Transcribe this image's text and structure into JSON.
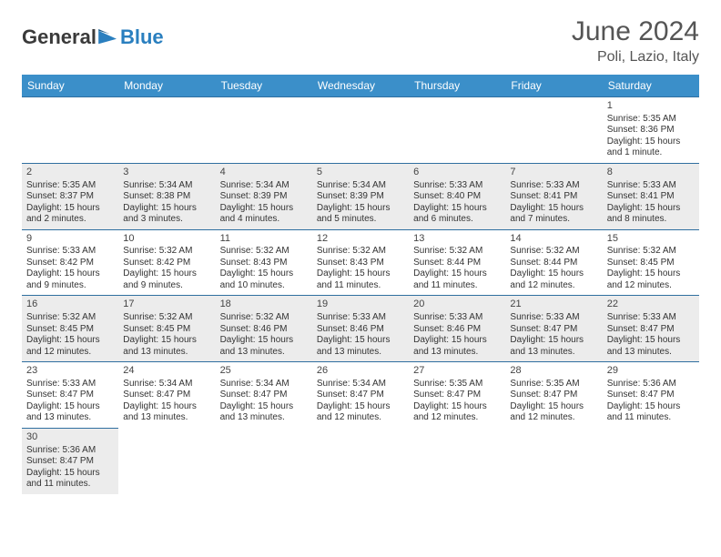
{
  "logo": {
    "general": "General",
    "blue": "Blue"
  },
  "title": "June 2024",
  "location": "Poli, Lazio, Italy",
  "colors": {
    "header_bg": "#3b8fc9",
    "header_text": "#ffffff",
    "cell_border": "#2f6fa0",
    "shade_bg": "#ececec",
    "text": "#333333",
    "title_color": "#555555"
  },
  "weekdays": [
    "Sunday",
    "Monday",
    "Tuesday",
    "Wednesday",
    "Thursday",
    "Friday",
    "Saturday"
  ],
  "leading_blanks": 6,
  "days": [
    {
      "n": 1,
      "sunrise": "5:35 AM",
      "sunset": "8:36 PM",
      "daylight": "15 hours and 1 minute."
    },
    {
      "n": 2,
      "sunrise": "5:35 AM",
      "sunset": "8:37 PM",
      "daylight": "15 hours and 2 minutes."
    },
    {
      "n": 3,
      "sunrise": "5:34 AM",
      "sunset": "8:38 PM",
      "daylight": "15 hours and 3 minutes."
    },
    {
      "n": 4,
      "sunrise": "5:34 AM",
      "sunset": "8:39 PM",
      "daylight": "15 hours and 4 minutes."
    },
    {
      "n": 5,
      "sunrise": "5:34 AM",
      "sunset": "8:39 PM",
      "daylight": "15 hours and 5 minutes."
    },
    {
      "n": 6,
      "sunrise": "5:33 AM",
      "sunset": "8:40 PM",
      "daylight": "15 hours and 6 minutes."
    },
    {
      "n": 7,
      "sunrise": "5:33 AM",
      "sunset": "8:41 PM",
      "daylight": "15 hours and 7 minutes."
    },
    {
      "n": 8,
      "sunrise": "5:33 AM",
      "sunset": "8:41 PM",
      "daylight": "15 hours and 8 minutes."
    },
    {
      "n": 9,
      "sunrise": "5:33 AM",
      "sunset": "8:42 PM",
      "daylight": "15 hours and 9 minutes."
    },
    {
      "n": 10,
      "sunrise": "5:32 AM",
      "sunset": "8:42 PM",
      "daylight": "15 hours and 9 minutes."
    },
    {
      "n": 11,
      "sunrise": "5:32 AM",
      "sunset": "8:43 PM",
      "daylight": "15 hours and 10 minutes."
    },
    {
      "n": 12,
      "sunrise": "5:32 AM",
      "sunset": "8:43 PM",
      "daylight": "15 hours and 11 minutes."
    },
    {
      "n": 13,
      "sunrise": "5:32 AM",
      "sunset": "8:44 PM",
      "daylight": "15 hours and 11 minutes."
    },
    {
      "n": 14,
      "sunrise": "5:32 AM",
      "sunset": "8:44 PM",
      "daylight": "15 hours and 12 minutes."
    },
    {
      "n": 15,
      "sunrise": "5:32 AM",
      "sunset": "8:45 PM",
      "daylight": "15 hours and 12 minutes."
    },
    {
      "n": 16,
      "sunrise": "5:32 AM",
      "sunset": "8:45 PM",
      "daylight": "15 hours and 12 minutes."
    },
    {
      "n": 17,
      "sunrise": "5:32 AM",
      "sunset": "8:45 PM",
      "daylight": "15 hours and 13 minutes."
    },
    {
      "n": 18,
      "sunrise": "5:32 AM",
      "sunset": "8:46 PM",
      "daylight": "15 hours and 13 minutes."
    },
    {
      "n": 19,
      "sunrise": "5:33 AM",
      "sunset": "8:46 PM",
      "daylight": "15 hours and 13 minutes."
    },
    {
      "n": 20,
      "sunrise": "5:33 AM",
      "sunset": "8:46 PM",
      "daylight": "15 hours and 13 minutes."
    },
    {
      "n": 21,
      "sunrise": "5:33 AM",
      "sunset": "8:47 PM",
      "daylight": "15 hours and 13 minutes."
    },
    {
      "n": 22,
      "sunrise": "5:33 AM",
      "sunset": "8:47 PM",
      "daylight": "15 hours and 13 minutes."
    },
    {
      "n": 23,
      "sunrise": "5:33 AM",
      "sunset": "8:47 PM",
      "daylight": "15 hours and 13 minutes."
    },
    {
      "n": 24,
      "sunrise": "5:34 AM",
      "sunset": "8:47 PM",
      "daylight": "15 hours and 13 minutes."
    },
    {
      "n": 25,
      "sunrise": "5:34 AM",
      "sunset": "8:47 PM",
      "daylight": "15 hours and 13 minutes."
    },
    {
      "n": 26,
      "sunrise": "5:34 AM",
      "sunset": "8:47 PM",
      "daylight": "15 hours and 12 minutes."
    },
    {
      "n": 27,
      "sunrise": "5:35 AM",
      "sunset": "8:47 PM",
      "daylight": "15 hours and 12 minutes."
    },
    {
      "n": 28,
      "sunrise": "5:35 AM",
      "sunset": "8:47 PM",
      "daylight": "15 hours and 12 minutes."
    },
    {
      "n": 29,
      "sunrise": "5:36 AM",
      "sunset": "8:47 PM",
      "daylight": "15 hours and 11 minutes."
    },
    {
      "n": 30,
      "sunrise": "5:36 AM",
      "sunset": "8:47 PM",
      "daylight": "15 hours and 11 minutes."
    }
  ],
  "labels": {
    "sunrise_prefix": "Sunrise: ",
    "sunset_prefix": "Sunset: ",
    "daylight_prefix": "Daylight: "
  }
}
